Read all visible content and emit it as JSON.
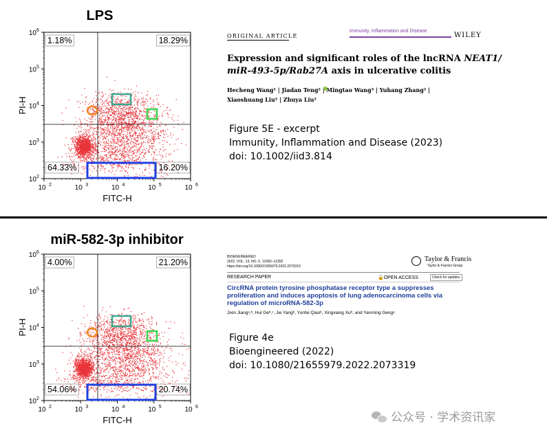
{
  "panels": [
    {
      "title": "LPS",
      "quadrants": {
        "ul": "1.18%",
        "ur": "18.29%",
        "ll": "64.33%",
        "lr": "16.20%"
      },
      "ylabel": "PI-H",
      "xlabel": "FITC-H"
    },
    {
      "title": "miR-582-3p inhibitor",
      "quadrants": {
        "ul": "4.00%",
        "ur": "21.20%",
        "ll": "54.06%",
        "lr": "20.74%"
      },
      "ylabel": "PI-H",
      "xlabel": "FITC-H"
    }
  ],
  "axis_ticks": {
    "base": "10",
    "x_exponents": [
      "2",
      "3",
      "4",
      "5",
      "6"
    ],
    "y_exponents": [
      "6",
      "5",
      "4",
      "3",
      "2"
    ]
  },
  "paper1": {
    "article_type": "ORIGINAL ARTICLE",
    "journal": "Immunity, Inflammation and Disease",
    "publisher": "WILEY",
    "title_line1_a": "Expression and significant roles of the lncRNA ",
    "title_line1_b": "NEAT1/",
    "title_line2_a": "miR-493-5p/Rab27A",
    "title_line2_b": " axis in ulcerative colitis",
    "authors_line1": "Hecheng Wang¹  |  Jiadan Teng²  |  Mingtao Wang³  |  Yuhang Zhang²  |",
    "authors_line2": "Xiaoshuang Liu²  |  Zhuya Liu²"
  },
  "caption1": {
    "line1": "Figure 5E - excerpt",
    "line2": "Immunity, Inflammation and Disease (2023)",
    "line3": "doi: 10.1002/iid3.814"
  },
  "paper2": {
    "journal": "BIOENGINEERED",
    "citation": "2022, VOL. 13, NO. 5, 12382–12392",
    "doi_line": "https://doi.org/10.1080/21655979.2022.2073319",
    "publisher": "Taylor & Francis",
    "publisher_sub": "Taylor & Francis Group",
    "section": "RESEARCH PAPER",
    "open_access": "OPEN ACCESS",
    "check_updates": "Check for updates",
    "title": "CircRNA protein tyrosine phosphatase receptor type a suppresses proliferation and induces apoptosis of lung adenocarcinoma cells via regulation of microRNA-582-3p",
    "authors": "Jixin Jiangᵃ,ᵇ, Hui Geᵇ,ᶜ, Jie Yangᵇ, Yunfei Qiaoᵇ, Xingxiang Xuᵇ, and Yanming Gengᵃ"
  },
  "caption2": {
    "line1": "Figure 4e",
    "line2": "Bioengineered (2022)",
    "line3": "doi: 10.1080/21655979.2022.2073319"
  },
  "watermark": "公众号 · 学术资讯家",
  "colors": {
    "dots": "#e8343a",
    "teal_box": "#3aa890",
    "green_box": "#39d54a",
    "orange_ring": "#f08a24",
    "blue_box": "#1e3fe0",
    "journal_purple": "#7b3fa0",
    "paper2_title": "#1f3f99"
  }
}
